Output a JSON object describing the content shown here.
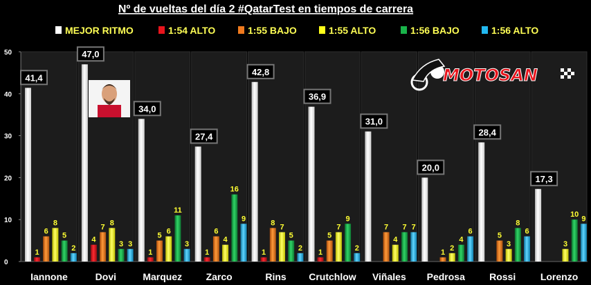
{
  "chart_data": {
    "type": "bar",
    "title": "Nº de vueltas del día 2 #QatarTest en tiempos de carrera",
    "xlabel": "",
    "ylabel": "",
    "ylim": [
      0,
      50
    ],
    "yticks": [
      0,
      10,
      20,
      30,
      40,
      50
    ],
    "grid": false,
    "legend_position": "top",
    "categories": [
      "Iannone",
      "Dovi",
      "Marquez",
      "Zarco",
      "Rins",
      "Crutchlow",
      "Viñales",
      "Pedrosa",
      "Rossi",
      "Lorenzo"
    ],
    "series": [
      {
        "name": "MEJOR RITMO",
        "color": "#ffffff",
        "values": [
          41.4,
          47.0,
          34.0,
          27.4,
          42.8,
          36.9,
          31.0,
          20.0,
          28.4,
          17.3
        ],
        "labels": [
          "41,4",
          "47,0",
          "34,0",
          "27,4",
          "42,8",
          "36,9",
          "31,0",
          "20,0",
          "28,4",
          "17,3"
        ]
      },
      {
        "name": "1:54 ALTO",
        "color": "#e8141c",
        "values": [
          1,
          4,
          1,
          1,
          1,
          1,
          0,
          0,
          0,
          0
        ]
      },
      {
        "name": "1:55 BAJO",
        "color": "#f07a1e",
        "values": [
          6,
          7,
          5,
          6,
          8,
          5,
          7,
          1,
          5,
          0
        ]
      },
      {
        "name": "1:55 ALTO",
        "color": "#ffff1a",
        "values": [
          8,
          8,
          6,
          4,
          7,
          7,
          4,
          2,
          3,
          3
        ]
      },
      {
        "name": "1:56 BAJO",
        "color": "#19b34a",
        "values": [
          5,
          3,
          11,
          16,
          5,
          9,
          7,
          4,
          8,
          10
        ]
      },
      {
        "name": "1:56 ALTO",
        "color": "#22b8f0",
        "values": [
          2,
          3,
          3,
          9,
          2,
          2,
          7,
          6,
          6,
          9
        ]
      }
    ]
  },
  "logo": {
    "text": "MOTOSAN",
    "icon": "motorcycle-rider-icon"
  }
}
